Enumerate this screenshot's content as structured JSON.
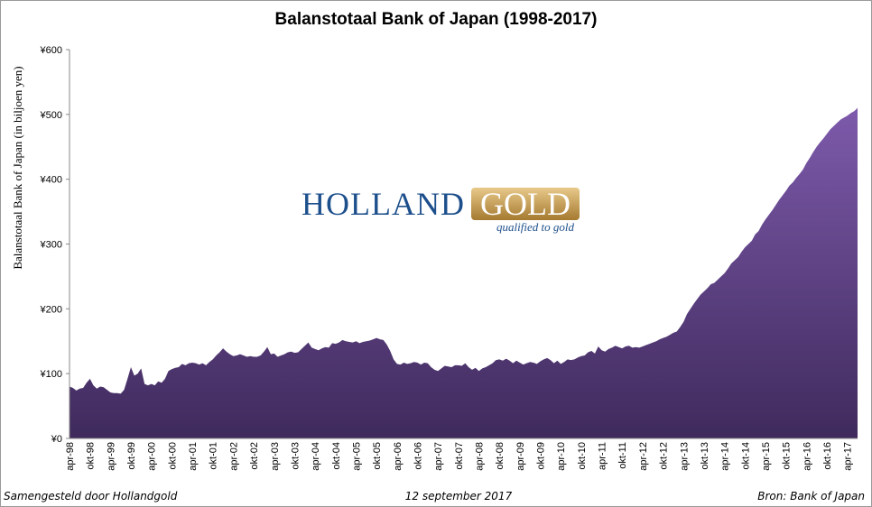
{
  "chart_data": {
    "type": "area",
    "title": "Balanstotaal Bank of Japan (1998-2017)",
    "y_label": "Balanstotaal Bank of Japan (in biljoen yen)",
    "color": "#7d5aab",
    "grid": false,
    "ylim": [
      0,
      600
    ],
    "yticks": [
      {
        "value": 0,
        "label": "¥0"
      },
      {
        "value": 100,
        "label": "¥100"
      },
      {
        "value": 200,
        "label": "¥200"
      },
      {
        "value": 300,
        "label": "¥300"
      },
      {
        "value": 400,
        "label": "¥400"
      },
      {
        "value": 500,
        "label": "¥500"
      },
      {
        "value": 600,
        "label": "¥600"
      }
    ],
    "categories": [
      "apr-98",
      null,
      null,
      null,
      null,
      null,
      "okt-98",
      null,
      null,
      null,
      null,
      null,
      "apr-99",
      null,
      null,
      null,
      null,
      null,
      "okt-99",
      null,
      null,
      null,
      null,
      null,
      "apr-00",
      null,
      null,
      null,
      null,
      null,
      "okt-00",
      null,
      null,
      null,
      null,
      null,
      "apr-01",
      null,
      null,
      null,
      null,
      null,
      "okt-01",
      null,
      null,
      null,
      null,
      null,
      "apr-02",
      null,
      null,
      null,
      null,
      null,
      "okt-02",
      null,
      null,
      null,
      null,
      null,
      "apr-03",
      null,
      null,
      null,
      null,
      null,
      "okt-03",
      null,
      null,
      null,
      null,
      null,
      "apr-04",
      null,
      null,
      null,
      null,
      null,
      "okt-04",
      null,
      null,
      null,
      null,
      null,
      "apr-05",
      null,
      null,
      null,
      null,
      null,
      "okt-05",
      null,
      null,
      null,
      null,
      null,
      "apr-06",
      null,
      null,
      null,
      null,
      null,
      "okt-06",
      null,
      null,
      null,
      null,
      null,
      "apr-07",
      null,
      null,
      null,
      null,
      null,
      "okt-07",
      null,
      null,
      null,
      null,
      null,
      "apr-08",
      null,
      null,
      null,
      null,
      null,
      "okt-08",
      null,
      null,
      null,
      null,
      null,
      "apr-09",
      null,
      null,
      null,
      null,
      null,
      "okt-09",
      null,
      null,
      null,
      null,
      null,
      "apr-10",
      null,
      null,
      null,
      null,
      null,
      "okt-10",
      null,
      null,
      null,
      null,
      null,
      "apr-11",
      null,
      null,
      null,
      null,
      null,
      "okt-11",
      null,
      null,
      null,
      null,
      null,
      "apr-12",
      null,
      null,
      null,
      null,
      null,
      "okt-12",
      null,
      null,
      null,
      null,
      null,
      "apr-13",
      null,
      null,
      null,
      null,
      null,
      "okt-13",
      null,
      null,
      null,
      null,
      null,
      "apr-14",
      null,
      null,
      null,
      null,
      null,
      "okt-14",
      null,
      null,
      null,
      null,
      null,
      "apr-15",
      null,
      null,
      null,
      null,
      null,
      "okt-15",
      null,
      null,
      null,
      null,
      null,
      "apr-16",
      null,
      null,
      null,
      null,
      null,
      "okt-16",
      null,
      null,
      null,
      null,
      null,
      "apr-17",
      null,
      null,
      null
    ],
    "values": [
      80,
      78,
      74,
      77,
      78,
      86,
      92,
      82,
      77,
      80,
      79,
      75,
      71,
      70,
      70,
      69,
      75,
      92,
      110,
      97,
      100,
      108,
      84,
      82,
      84,
      82,
      88,
      86,
      92,
      104,
      107,
      109,
      110,
      115,
      113,
      116,
      117,
      116,
      114,
      116,
      113,
      118,
      122,
      128,
      133,
      139,
      134,
      130,
      127,
      128,
      130,
      128,
      126,
      127,
      126,
      126,
      128,
      134,
      141,
      130,
      131,
      126,
      128,
      130,
      133,
      134,
      132,
      133,
      138,
      143,
      148,
      140,
      138,
      136,
      139,
      141,
      140,
      147,
      146,
      148,
      152,
      150,
      149,
      148,
      150,
      147,
      149,
      150,
      151,
      153,
      155,
      153,
      152,
      145,
      135,
      122,
      115,
      114,
      117,
      115,
      116,
      118,
      117,
      114,
      117,
      116,
      110,
      106,
      104,
      108,
      112,
      111,
      110,
      113,
      113,
      112,
      116,
      110,
      106,
      109,
      104,
      108,
      110,
      113,
      116,
      121,
      122,
      120,
      123,
      120,
      116,
      120,
      117,
      114,
      116,
      118,
      117,
      115,
      119,
      122,
      124,
      121,
      116,
      120,
      115,
      118,
      122,
      121,
      122,
      125,
      127,
      128,
      133,
      135,
      131,
      142,
      136,
      134,
      138,
      140,
      143,
      141,
      139,
      142,
      143,
      140,
      141,
      140,
      142,
      144,
      146,
      148,
      150,
      153,
      155,
      157,
      160,
      163,
      165,
      172,
      180,
      192,
      200,
      208,
      215,
      222,
      227,
      232,
      238,
      240,
      245,
      250,
      255,
      262,
      270,
      275,
      280,
      288,
      295,
      300,
      305,
      315,
      320,
      330,
      338,
      345,
      352,
      360,
      368,
      375,
      382,
      390,
      395,
      402,
      408,
      415,
      425,
      433,
      442,
      450,
      457,
      463,
      470,
      477,
      482,
      487,
      492,
      495,
      498,
      502,
      505,
      510
    ]
  },
  "logo": {
    "word1": "HOLLAND",
    "word2": "GOLD",
    "tagline": "qualified to gold"
  },
  "footer": {
    "left": "Samengesteld door Hollandgold",
    "center": "12 september 2017",
    "right": "Bron: Bank of Japan"
  }
}
